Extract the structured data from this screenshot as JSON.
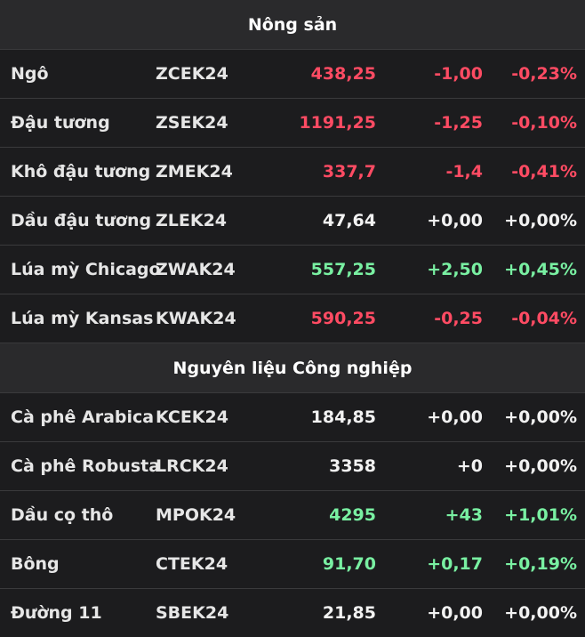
{
  "sections": [
    {
      "title": "Nông sản",
      "rows": [
        {
          "name": "Ngô",
          "code": "ZCEK24",
          "price": "438,25",
          "change": "-1,00",
          "pct": "-0,23%",
          "status": "down"
        },
        {
          "name": "Đậu tương",
          "code": "ZSEK24",
          "price": "1191,25",
          "change": "-1,25",
          "pct": "-0,10%",
          "status": "down"
        },
        {
          "name": "Khô đậu tương",
          "code": "ZMEK24",
          "price": "337,7",
          "change": "-1,4",
          "pct": "-0,41%",
          "status": "down"
        },
        {
          "name": "Dầu đậu tương",
          "code": "ZLEK24",
          "price": "47,64",
          "change": "+0,00",
          "pct": "+0,00%",
          "status": "flat"
        },
        {
          "name": "Lúa mỳ Chicago",
          "code": "ZWAK24",
          "price": "557,25",
          "change": "+2,50",
          "pct": "+0,45%",
          "status": "up"
        },
        {
          "name": "Lúa mỳ Kansas",
          "code": "KWAK24",
          "price": "590,25",
          "change": "-0,25",
          "pct": "-0,04%",
          "status": "down"
        }
      ]
    },
    {
      "title": "Nguyên liệu Công nghiệp",
      "rows": [
        {
          "name": "Cà phê Arabica",
          "code": "KCEK24",
          "price": "184,85",
          "change": "+0,00",
          "pct": "+0,00%",
          "status": "flat"
        },
        {
          "name": "Cà phê Robusta",
          "code": "LRCK24",
          "price": "3358",
          "change": "+0",
          "pct": "+0,00%",
          "status": "flat"
        },
        {
          "name": "Dầu cọ thô",
          "code": "MPOK24",
          "price": "4295",
          "change": "+43",
          "pct": "+1,01%",
          "status": "up"
        },
        {
          "name": "Bông",
          "code": "CTEK24",
          "price": "91,70",
          "change": "+0,17",
          "pct": "+0,19%",
          "status": "up"
        },
        {
          "name": "Đường 11",
          "code": "SBEK24",
          "price": "21,85",
          "change": "+0,00",
          "pct": "+0,00%",
          "status": "flat"
        }
      ]
    }
  ],
  "colors": {
    "up": "#79f0a2",
    "down": "#ff4b63",
    "flat": "#f2f2f2",
    "background": "#1c1c1e",
    "header": "#2a2a2c"
  }
}
